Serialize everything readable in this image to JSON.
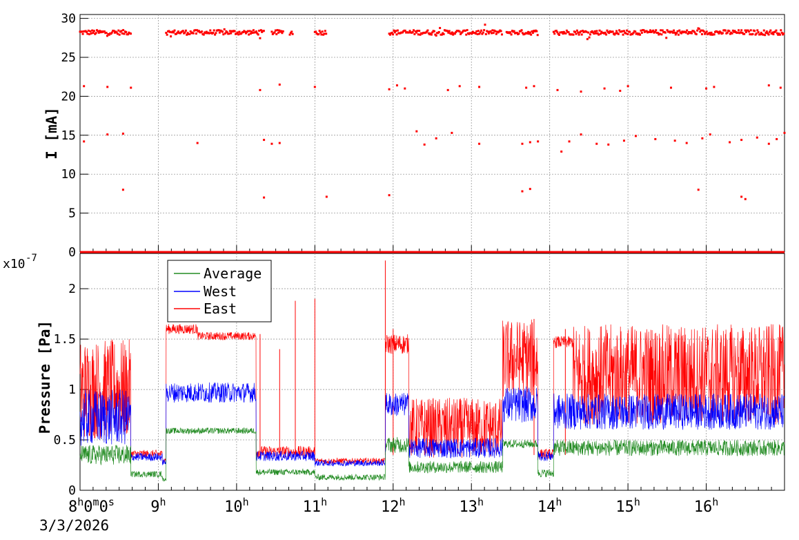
{
  "time_axis": {
    "start_label": "8",
    "start_suffix_h": "h",
    "start_min": "0",
    "start_suffix_m": "m",
    "start_sec": "0",
    "start_suffix_s": "s",
    "hours": [
      "9",
      "10",
      "11",
      "12",
      "13",
      "14",
      "15",
      "16"
    ],
    "hour_suffix": "h",
    "date": "3/3/2026"
  },
  "chart_data": [
    {
      "type": "scatter",
      "id": "current",
      "ylabel": "I [mA]",
      "xlim": [
        8.0,
        17.0
      ],
      "ylim": [
        0,
        30.5
      ],
      "yticks": [
        "0",
        "5",
        "10",
        "15",
        "20",
        "25",
        "30"
      ],
      "grid": true,
      "color": "#ff0000",
      "series": [
        {
          "name": "",
          "baseline_value": 28.2,
          "coverage_hours": [
            [
              8.0,
              8.65
            ],
            [
              9.1,
              10.35
            ],
            [
              10.45,
              10.6
            ],
            [
              10.68,
              10.72
            ],
            [
              11.0,
              11.15
            ],
            [
              11.95,
              13.4
            ],
            [
              13.45,
              13.85
            ],
            [
              14.05,
              17.0
            ]
          ],
          "zero_value": 0.0,
          "outliers": [
            [
              8.05,
              21.3
            ],
            [
              8.35,
              21.2
            ],
            [
              8.65,
              21.1
            ],
            [
              10.3,
              20.8
            ],
            [
              10.55,
              21.5
            ],
            [
              11.0,
              21.2
            ],
            [
              11.95,
              20.9
            ],
            [
              12.05,
              21.4
            ],
            [
              12.15,
              21.0
            ],
            [
              12.7,
              20.8
            ],
            [
              12.85,
              21.3
            ],
            [
              13.1,
              21.2
            ],
            [
              13.7,
              21.1
            ],
            [
              13.8,
              21.3
            ],
            [
              14.1,
              20.8
            ],
            [
              14.4,
              20.6
            ],
            [
              14.7,
              21.0
            ],
            [
              14.9,
              20.7
            ],
            [
              15.0,
              21.3
            ],
            [
              15.55,
              21.1
            ],
            [
              16.0,
              21.0
            ],
            [
              16.1,
              21.2
            ],
            [
              16.8,
              21.4
            ],
            [
              16.95,
              21.1
            ],
            [
              8.05,
              14.2
            ],
            [
              8.35,
              15.1
            ],
            [
              8.55,
              15.2
            ],
            [
              9.5,
              14.0
            ],
            [
              10.35,
              14.4
            ],
            [
              10.45,
              13.9
            ],
            [
              10.55,
              14.0
            ],
            [
              12.3,
              15.5
            ],
            [
              12.4,
              13.8
            ],
            [
              12.55,
              14.6
            ],
            [
              12.75,
              15.3
            ],
            [
              13.1,
              13.9
            ],
            [
              13.65,
              13.9
            ],
            [
              13.75,
              14.1
            ],
            [
              13.85,
              14.2
            ],
            [
              14.15,
              12.9
            ],
            [
              14.25,
              14.2
            ],
            [
              14.4,
              15.1
            ],
            [
              14.6,
              13.9
            ],
            [
              14.75,
              13.8
            ],
            [
              14.95,
              14.3
            ],
            [
              15.1,
              14.9
            ],
            [
              15.35,
              14.5
            ],
            [
              15.6,
              14.3
            ],
            [
              15.75,
              14.0
            ],
            [
              15.95,
              14.6
            ],
            [
              16.05,
              15.1
            ],
            [
              16.3,
              14.1
            ],
            [
              16.45,
              14.4
            ],
            [
              16.65,
              14.7
            ],
            [
              16.8,
              13.9
            ],
            [
              16.9,
              14.5
            ],
            [
              17.0,
              15.3
            ],
            [
              8.55,
              8.0
            ],
            [
              10.35,
              7.0
            ],
            [
              11.15,
              7.1
            ],
            [
              11.95,
              7.3
            ],
            [
              13.65,
              7.8
            ],
            [
              13.75,
              8.1
            ],
            [
              15.9,
              8.0
            ],
            [
              16.45,
              7.1
            ],
            [
              16.5,
              6.8
            ]
          ]
        }
      ]
    },
    {
      "type": "line",
      "id": "pressure",
      "ylabel": "Pressure [Pa]",
      "multiplier_label": "x10",
      "multiplier_exponent": "-7",
      "xlim": [
        8.0,
        17.0
      ],
      "ylim": [
        0,
        2.35
      ],
      "yticks": [
        "0",
        "0.5",
        "1",
        "1.5",
        "2"
      ],
      "grid": true,
      "legend_position": "top-left",
      "series": [
        {
          "name": "Average",
          "color": "#228b22",
          "segments": [
            {
              "x": [
                8.0,
                8.65
              ],
              "level": 0.35,
              "spread": 0.1
            },
            {
              "x": [
                8.65,
                9.05
              ],
              "level": 0.16,
              "spread": 0.03
            },
            {
              "x": [
                9.05,
                9.1
              ],
              "level": 0.11,
              "spread": 0.02
            },
            {
              "x": [
                9.1,
                10.25
              ],
              "level": 0.59,
              "spread": 0.03
            },
            {
              "x": [
                10.25,
                11.0
              ],
              "level": 0.18,
              "spread": 0.03
            },
            {
              "x": [
                11.0,
                11.9
              ],
              "level": 0.13,
              "spread": 0.03
            },
            {
              "x": [
                11.9,
                12.2
              ],
              "level": 0.45,
              "spread": 0.08
            },
            {
              "x": [
                12.2,
                13.4
              ],
              "level": 0.23,
              "spread": 0.06
            },
            {
              "x": [
                13.4,
                13.85
              ],
              "level": 0.46,
              "spread": 0.04
            },
            {
              "x": [
                13.85,
                14.05
              ],
              "level": 0.17,
              "spread": 0.04
            },
            {
              "x": [
                14.05,
                17.0
              ],
              "level": 0.42,
              "spread": 0.08
            }
          ]
        },
        {
          "name": "West",
          "color": "#0000ff",
          "segments": [
            {
              "x": [
                8.0,
                8.65
              ],
              "level": 0.72,
              "spread": 0.28
            },
            {
              "x": [
                8.65,
                9.05
              ],
              "level": 0.33,
              "spread": 0.04
            },
            {
              "x": [
                9.05,
                9.1
              ],
              "level": 0.28,
              "spread": 0.03
            },
            {
              "x": [
                9.1,
                10.25
              ],
              "level": 0.97,
              "spread": 0.1
            },
            {
              "x": [
                10.25,
                11.0
              ],
              "level": 0.34,
              "spread": 0.05
            },
            {
              "x": [
                11.0,
                11.9
              ],
              "level": 0.27,
              "spread": 0.03
            },
            {
              "x": [
                11.9,
                12.2
              ],
              "level": 0.85,
              "spread": 0.12
            },
            {
              "x": [
                12.2,
                13.4
              ],
              "level": 0.42,
              "spread": 0.1
            },
            {
              "x": [
                13.4,
                13.85
              ],
              "level": 0.85,
              "spread": 0.18
            },
            {
              "x": [
                13.85,
                14.05
              ],
              "level": 0.34,
              "spread": 0.05
            },
            {
              "x": [
                14.05,
                17.0
              ],
              "level": 0.78,
              "spread": 0.18
            }
          ]
        },
        {
          "name": "East",
          "color": "#ff0000",
          "segments": [
            {
              "x": [
                8.0,
                8.65
              ],
              "level": 1.0,
              "spread": 0.5
            },
            {
              "x": [
                8.65,
                9.05
              ],
              "level": 0.36,
              "spread": 0.04
            },
            {
              "x": [
                9.05,
                9.1
              ],
              "level": 0.3,
              "spread": 0.03
            },
            {
              "x": [
                9.1,
                9.5
              ],
              "level": 1.6,
              "spread": 0.05
            },
            {
              "x": [
                9.5,
                10.25
              ],
              "level": 1.53,
              "spread": 0.04
            },
            {
              "x": [
                10.25,
                11.0
              ],
              "level": 0.38,
              "spread": 0.06
            },
            {
              "x": [
                11.0,
                11.9
              ],
              "level": 0.29,
              "spread": 0.03
            },
            {
              "x": [
                11.9,
                12.2
              ],
              "level": 1.45,
              "spread": 0.1
            },
            {
              "x": [
                12.2,
                13.4
              ],
              "level": 0.62,
              "spread": 0.3
            },
            {
              "x": [
                13.4,
                13.85
              ],
              "level": 1.3,
              "spread": 0.4
            },
            {
              "x": [
                13.85,
                14.05
              ],
              "level": 0.36,
              "spread": 0.05
            },
            {
              "x": [
                14.05,
                14.3
              ],
              "level": 1.47,
              "spread": 0.06
            },
            {
              "x": [
                14.3,
                17.0
              ],
              "level": 1.15,
              "spread": 0.5
            }
          ],
          "spikes": [
            [
              10.3,
              1.55
            ],
            [
              10.55,
              1.4
            ],
            [
              10.75,
              1.88
            ],
            [
              11.0,
              1.9
            ],
            [
              11.9,
              2.28
            ],
            [
              12.0,
              1.6
            ],
            [
              13.8,
              1.7
            ],
            [
              14.2,
              1.6
            ]
          ]
        }
      ]
    }
  ]
}
